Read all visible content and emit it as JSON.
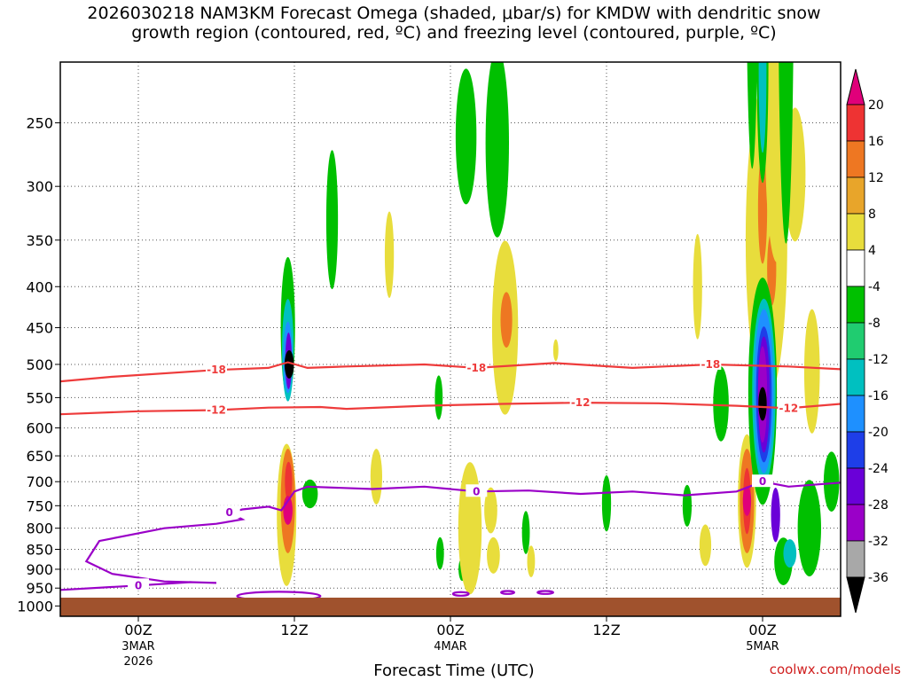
{
  "chart_data": {
    "type": "heatmap",
    "title_line1": "2026030218 NAM3KM Forecast Omega (shaded, μbar/s) for KMDW with dendritic snow",
    "title_line2": "growth region (contoured, red, ºC) and freezing level (contoured, purple, ºC)",
    "xlabel": "Forecast Time (UTC)",
    "credit": "coolwx.com/models",
    "y_ticks": [
      250,
      300,
      350,
      400,
      450,
      500,
      550,
      600,
      650,
      700,
      750,
      800,
      850,
      900,
      950,
      1000
    ],
    "x_ticks": [
      {
        "hour": 6,
        "label1": "00Z",
        "label2": "3MAR",
        "label3": "2026"
      },
      {
        "hour": 18,
        "label1": "12Z",
        "label2": "",
        "label3": ""
      },
      {
        "hour": 30,
        "label1": "00Z",
        "label2": "4MAR",
        "label3": ""
      },
      {
        "hour": 42,
        "label1": "12Z",
        "label2": "",
        "label3": ""
      },
      {
        "hour": 54,
        "label1": "00Z",
        "label2": "5MAR",
        "label3": ""
      }
    ],
    "x_range_hours": [
      0,
      60
    ],
    "colorbar": {
      "tick_values": [
        20,
        16,
        12,
        8,
        4,
        -4,
        -8,
        -12,
        -16,
        -20,
        -24,
        -28,
        -32,
        -36
      ],
      "colors": [
        "#ee3333",
        "#ee7722",
        "#e8a52a",
        "#e8dd3c",
        "#ffffff",
        "#00c000",
        "#20cc70",
        "#00c0c0",
        "#1e90ff",
        "#1e3ee8",
        "#6a00d8",
        "#9a00c8",
        "#a8a8a8"
      ],
      "top_color": "#e0007a",
      "bottom_color": "#000000"
    },
    "contours": [
      {
        "name": "dgz-minus18",
        "label": "-18",
        "color": "#ee3b3b",
        "points": [
          [
            0,
            525
          ],
          [
            4,
            518
          ],
          [
            12,
            508
          ],
          [
            16,
            505
          ],
          [
            17.5,
            497
          ],
          [
            19,
            505
          ],
          [
            22,
            503
          ],
          [
            28,
            500
          ],
          [
            32,
            505
          ],
          [
            38,
            498
          ],
          [
            44,
            505
          ],
          [
            50,
            500
          ],
          [
            56,
            503
          ],
          [
            60,
            507
          ]
        ]
      },
      {
        "name": "dgz-minus12",
        "label": "-12",
        "color": "#ee3b3b",
        "points": [
          [
            0,
            577
          ],
          [
            6,
            572
          ],
          [
            12,
            570
          ],
          [
            16,
            566
          ],
          [
            20,
            565
          ],
          [
            22,
            568
          ],
          [
            28,
            563
          ],
          [
            34,
            560
          ],
          [
            40,
            558
          ],
          [
            46,
            559
          ],
          [
            52,
            563
          ],
          [
            56,
            567
          ],
          [
            60,
            560
          ]
        ]
      },
      {
        "name": "freezing-level",
        "label": "0",
        "color": "#9a00c8",
        "points": [
          [
            0,
            955
          ],
          [
            6,
            943
          ],
          [
            10,
            934
          ],
          [
            12,
            936
          ],
          [
            8,
            932
          ],
          [
            4,
            912
          ],
          [
            2,
            880
          ],
          [
            3,
            830
          ],
          [
            8,
            800
          ],
          [
            12,
            790
          ],
          [
            14,
            780
          ],
          [
            13,
            765
          ],
          [
            14,
            758
          ],
          [
            16,
            752
          ],
          [
            17,
            760
          ],
          [
            18,
            720
          ],
          [
            19,
            710
          ],
          [
            24,
            715
          ],
          [
            28,
            710
          ],
          [
            32,
            720
          ],
          [
            36,
            718
          ],
          [
            40,
            725
          ],
          [
            44,
            720
          ],
          [
            48,
            728
          ],
          [
            52,
            720
          ],
          [
            54,
            700
          ],
          [
            56,
            710
          ],
          [
            60,
            702
          ]
        ]
      }
    ],
    "omega_features": [
      {
        "name": "uvv-core-12z",
        "hour": 17.6,
        "p": 500,
        "rx": 0.9,
        "rp": 90,
        "value": -36
      },
      {
        "name": "uvv-core-00z-5mar",
        "hour": 54,
        "p": 560,
        "rx": 0.8,
        "rp": 120,
        "value": -36
      },
      {
        "name": "sink-core-12z",
        "hour": 17.5,
        "p": 760,
        "rx": 0.9,
        "rp": 140,
        "value": 20
      },
      {
        "name": "sink-core-00z-5mar",
        "hour": 52.8,
        "p": 740,
        "rx": 0.8,
        "rp": 140,
        "value": 20
      }
    ]
  }
}
